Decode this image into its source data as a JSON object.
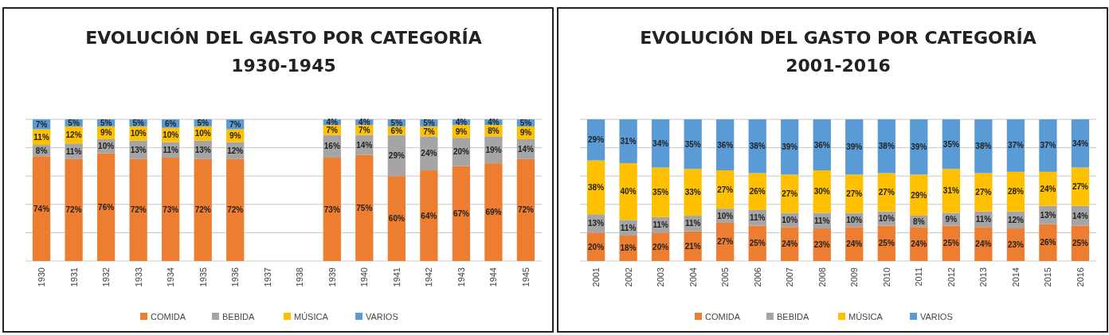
{
  "chart_data": [
    {
      "type": "bar",
      "stacked": true,
      "title": "EVOLUCIÓN DEL GASTO POR CATEGORÍA",
      "subtitle": "1930-1945",
      "categories": [
        "1930",
        "1931",
        "1932",
        "1933",
        "1934",
        "1935",
        "1936",
        "1937",
        "1938",
        "1939",
        "1940",
        "1941",
        "1942",
        "1943",
        "1944",
        "1945"
      ],
      "ylim": [
        0,
        100
      ],
      "yticks": [
        {
          "value": 0,
          "label": null
        },
        {
          "value": 20,
          "label": null
        },
        {
          "value": 40,
          "label": null
        },
        {
          "value": 60,
          "label": null
        },
        {
          "value": 80,
          "label": null
        },
        {
          "value": 100,
          "label": null
        }
      ],
      "tick_labels": "x",
      "grid": "y",
      "legend": "bottom",
      "series": [
        {
          "name": "COMIDA",
          "color": "#ed7d31",
          "values": [
            74,
            72,
            76,
            72,
            73,
            72,
            72,
            null,
            null,
            73,
            75,
            60,
            64,
            67,
            69,
            72
          ],
          "value_labels": [
            "74%",
            "72%",
            "76%",
            "72%",
            "73%",
            "72%",
            "72%",
            null,
            null,
            "73%",
            "75%",
            "60%",
            "64%",
            "67%",
            "69%",
            "72%"
          ]
        },
        {
          "name": "BEBIDA",
          "color": "#a5a5a5",
          "values": [
            8,
            11,
            10,
            13,
            11,
            13,
            12,
            null,
            null,
            16,
            14,
            29,
            24,
            20,
            19,
            14
          ],
          "value_labels": [
            "8%",
            "11%",
            "10%",
            "13%",
            "11%",
            "13%",
            "12%",
            null,
            null,
            "16%",
            "14%",
            "29%",
            "24%",
            "20%",
            "19%",
            "14%"
          ]
        },
        {
          "name": "MÚSICA",
          "color": "#ffc000",
          "values": [
            11,
            12,
            9,
            10,
            10,
            10,
            9,
            null,
            null,
            7,
            7,
            6,
            7,
            9,
            8,
            9
          ],
          "value_labels": [
            "11%",
            "12%",
            "9%",
            "10%",
            "10%",
            "10%",
            "9%",
            null,
            null,
            "7%",
            "7%",
            "6%",
            "7%",
            "9%",
            "8%",
            "9%"
          ]
        },
        {
          "name": "VARIOS",
          "color": "#5b9bd5",
          "values": [
            7,
            5,
            5,
            5,
            6,
            5,
            7,
            null,
            null,
            4,
            4,
            5,
            5,
            4,
            4,
            5
          ],
          "value_labels": [
            "7%",
            "5%",
            "5%",
            "5%",
            "6%",
            "5%",
            "7%",
            null,
            null,
            "4%",
            "4%",
            "5%",
            "5%",
            "4%",
            "4%",
            "5%"
          ]
        }
      ]
    },
    {
      "type": "bar",
      "stacked": true,
      "title": "EVOLUCIÓN DEL GASTO POR CATEGORÍA",
      "subtitle": "2001-2016",
      "categories": [
        "2001",
        "2002",
        "2003",
        "2004",
        "2005",
        "2006",
        "2007",
        "2008",
        "2009",
        "2010",
        "2011",
        "2012",
        "2013",
        "2014",
        "2015",
        "2016"
      ],
      "ylim": [
        0,
        100
      ],
      "yticks": [
        {
          "value": 0,
          "label": null
        },
        {
          "value": 20,
          "label": null
        },
        {
          "value": 40,
          "label": null
        },
        {
          "value": 60,
          "label": null
        },
        {
          "value": 80,
          "label": null
        },
        {
          "value": 100,
          "label": null
        }
      ],
      "tick_labels": "x",
      "grid": "y",
      "legend": "bottom",
      "series": [
        {
          "name": "COMIDA",
          "color": "#ed7d31",
          "values": [
            20,
            18,
            20,
            21,
            27,
            25,
            24,
            23,
            24,
            25,
            24,
            25,
            24,
            23,
            26,
            25
          ],
          "value_labels": [
            "20%",
            "18%",
            "20%",
            "21%",
            "27%",
            "25%",
            "24%",
            "23%",
            "24%",
            "25%",
            "24%",
            "25%",
            "24%",
            "23%",
            "26%",
            "25%"
          ]
        },
        {
          "name": "BEBIDA",
          "color": "#a5a5a5",
          "values": [
            13,
            11,
            11,
            11,
            10,
            11,
            10,
            11,
            10,
            10,
            8,
            9,
            11,
            12,
            13,
            14
          ],
          "value_labels": [
            "13%",
            "11%",
            "11%",
            "11%",
            "10%",
            "11%",
            "10%",
            "11%",
            "10%",
            "10%",
            "8%",
            "9%",
            "11%",
            "12%",
            "13%",
            "14%"
          ]
        },
        {
          "name": "MÚSICA",
          "color": "#ffc000",
          "values": [
            38,
            40,
            35,
            33,
            27,
            26,
            27,
            30,
            27,
            27,
            29,
            31,
            27,
            28,
            24,
            27
          ],
          "value_labels": [
            "38%",
            "40%",
            "35%",
            "33%",
            "27%",
            "26%",
            "27%",
            "30%",
            "27%",
            "27%",
            "29%",
            "31%",
            "27%",
            "28%",
            "24%",
            "27%"
          ]
        },
        {
          "name": "VARIOS",
          "color": "#5b9bd5",
          "values": [
            29,
            31,
            34,
            35,
            36,
            38,
            39,
            36,
            39,
            38,
            39,
            35,
            38,
            37,
            37,
            34
          ],
          "value_labels": [
            "29%",
            "31%",
            "34%",
            "35%",
            "36%",
            "38%",
            "39%",
            "36%",
            "39%",
            "38%",
            "39%",
            "35%",
            "38%",
            "37%",
            "37%",
            "34%"
          ]
        }
      ]
    }
  ]
}
